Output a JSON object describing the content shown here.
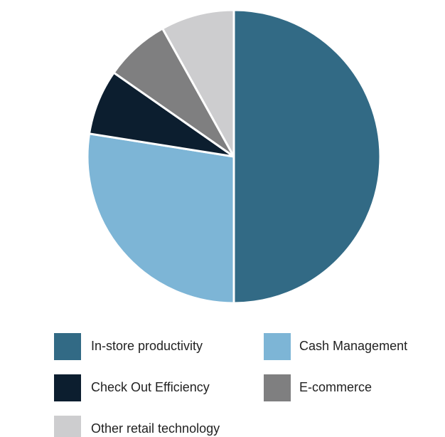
{
  "chart_data": {
    "type": "pie",
    "categories": [
      "In-store productivity",
      "Cash Management",
      "Check Out Efficiency",
      "E-commerce",
      "Other retail technology"
    ],
    "values": [
      50,
      27.5,
      7.2,
      7.2,
      8.1
    ],
    "colors": [
      "#326a85",
      "#7db5d6",
      "#0c1e2f",
      "#7f7f80",
      "#cdcdcf"
    ],
    "start_angle": 0,
    "direction": "clockwise"
  }
}
